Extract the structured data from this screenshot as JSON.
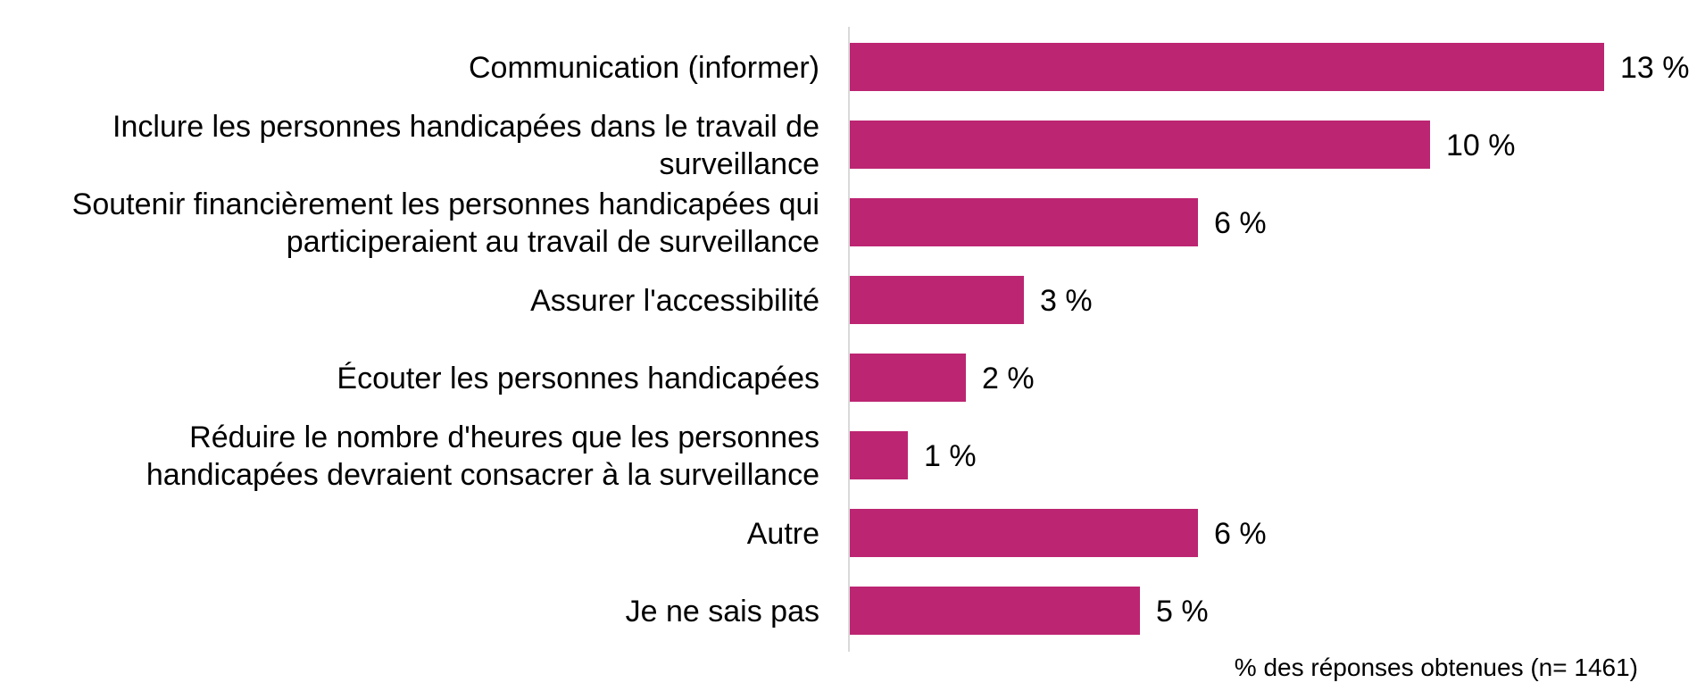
{
  "chart_data": {
    "type": "bar",
    "orientation": "horizontal",
    "categories": [
      [
        "Communication (informer)"
      ],
      [
        "Inclure les personnes handicapées dans le travail de",
        "surveillance"
      ],
      [
        "Soutenir financièrement les personnes handicapées qui",
        "participeraient au travail de surveillance"
      ],
      [
        "Assurer l'accessibilité"
      ],
      [
        "Écouter les personnes handicapées"
      ],
      [
        "Réduire le nombre d'heures que les personnes",
        "handicapées devraient consacrer à la surveillance"
      ],
      [
        "Autre"
      ],
      [
        "Je ne sais pas"
      ]
    ],
    "values": [
      13,
      10,
      6,
      3,
      2,
      1,
      6,
      5
    ],
    "value_labels": [
      "13 %",
      "10 %",
      "6 %",
      "3 %",
      "2 %",
      "1 %",
      "6 %",
      "5 %"
    ],
    "note": "% des réponses obtenues (n= 1461)",
    "bar_color": "#bc2572",
    "axis_color": "#d9d9d9",
    "grid": false,
    "legend": "none"
  }
}
